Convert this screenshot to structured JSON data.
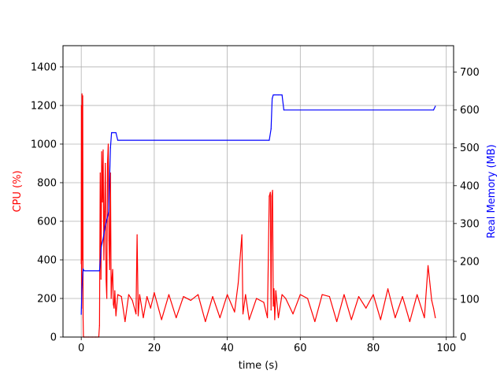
{
  "chart_data": {
    "type": "line",
    "title": "",
    "xlabel": "time (s)",
    "ylabel_left": "CPU (%)",
    "ylabel_right": "Real Memory (MB)",
    "xlim": [
      -5,
      102
    ],
    "ylim_left": [
      0,
      1510
    ],
    "ylim_right": [
      0,
      770
    ],
    "x_ticks": [
      0,
      20,
      40,
      60,
      80,
      100
    ],
    "y_ticks_left": [
      0,
      200,
      400,
      600,
      800,
      1000,
      1200,
      1400
    ],
    "y_ticks_right": [
      0,
      100,
      200,
      300,
      400,
      500,
      600,
      700
    ],
    "grid": true,
    "legend": "none",
    "colors": {
      "cpu": "#ff0000",
      "memory": "#0000ff",
      "grid": "#b0b0b0"
    },
    "series": [
      {
        "axis": "left",
        "color": "#ff0000",
        "description": "noisy CPU trace",
        "x": [
          0,
          0.05,
          0.1,
          0.2,
          0.3,
          0.4,
          0.5,
          0.6,
          0.8,
          1.0,
          1.5,
          2.0,
          3.0,
          4.0,
          4.8,
          5.0,
          5.2,
          5.4,
          5.6,
          5.8,
          6.0,
          6.2,
          6.4,
          6.6,
          6.8,
          7.0,
          7.2,
          7.4,
          7.6,
          7.8,
          8.0,
          8.2,
          8.4,
          8.6,
          8.8,
          9.0,
          9.2,
          9.5,
          10,
          11,
          12,
          13,
          14,
          15,
          15.3,
          15.6,
          16,
          17,
          18,
          19,
          20,
          22,
          24,
          26,
          28,
          30,
          32,
          34,
          36,
          38,
          40,
          42,
          43,
          44,
          44.3,
          45,
          46,
          48,
          50,
          51,
          51.5,
          51.8,
          52.0,
          52.2,
          52.4,
          52.6,
          52.8,
          53.0,
          53.3,
          54,
          55,
          56,
          58,
          60,
          62,
          64,
          66,
          68,
          70,
          72,
          74,
          76,
          78,
          80,
          82,
          84,
          86,
          88,
          90,
          92,
          94,
          95,
          96,
          96.5,
          97
        ],
        "y": [
          380,
          1200,
          150,
          1260,
          400,
          1250,
          100,
          0,
          0,
          0,
          0,
          0,
          0,
          0,
          0,
          60,
          850,
          300,
          960,
          700,
          970,
          400,
          650,
          900,
          300,
          200,
          900,
          1000,
          500,
          350,
          850,
          200,
          300,
          350,
          170,
          150,
          240,
          110,
          220,
          210,
          80,
          220,
          190,
          120,
          530,
          110,
          220,
          100,
          210,
          150,
          230,
          90,
          220,
          100,
          210,
          190,
          220,
          80,
          210,
          100,
          220,
          130,
          280,
          530,
          120,
          220,
          90,
          200,
          180,
          100,
          730,
          750,
          140,
          730,
          760,
          160,
          250,
          90,
          240,
          100,
          220,
          200,
          120,
          220,
          200,
          80,
          220,
          210,
          80,
          220,
          90,
          210,
          150,
          220,
          90,
          250,
          100,
          210,
          80,
          220,
          100,
          370,
          190,
          150,
          100
        ]
      },
      {
        "axis": "right",
        "color": "#0000ff",
        "description": "memory usage",
        "x": [
          0,
          0.2,
          0.5,
          0.8,
          5.0,
          5.5,
          6.0,
          6.5,
          7.0,
          7.5,
          8.0,
          8.3,
          8.5,
          9.5,
          10,
          10.5,
          51.5,
          52.0,
          52.3,
          52.6,
          53,
          54,
          55,
          55.5,
          96.5,
          97
        ],
        "y": [
          60,
          130,
          180,
          175,
          175,
          240,
          260,
          290,
          310,
          330,
          500,
          540,
          540,
          540,
          520,
          520,
          520,
          550,
          630,
          640,
          640,
          640,
          640,
          600,
          600,
          610
        ]
      }
    ]
  }
}
